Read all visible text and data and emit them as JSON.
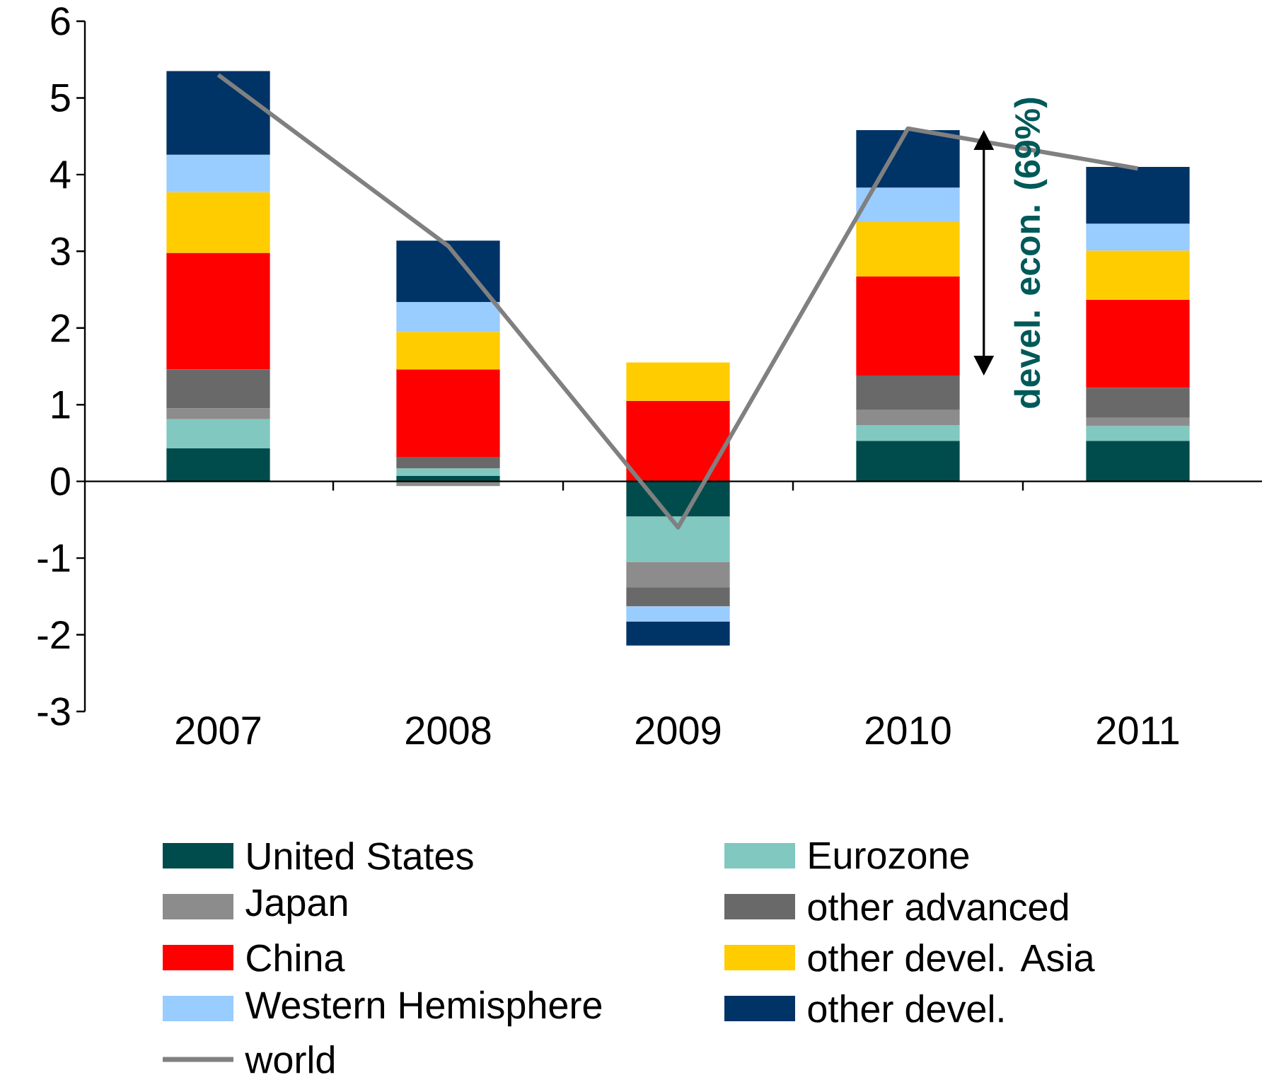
{
  "chart_data": {
    "type": "bar",
    "stacked": true,
    "categories": [
      "2007",
      "2008",
      "2009",
      "2010",
      "2011"
    ],
    "ylim": [
      -3,
      6
    ],
    "yticks": [
      -3,
      -2,
      -1,
      0,
      1,
      2,
      3,
      4,
      5,
      6
    ],
    "legend": "bottom",
    "annotations": [
      "devel. econ. (69%)"
    ],
    "series": [
      {
        "name": "United States",
        "color": "#004c4c",
        "values": [
          0.43,
          0.07,
          -0.46,
          0.53,
          0.53
        ]
      },
      {
        "name": "Eurozone",
        "color": "#80c8c0",
        "values": [
          0.38,
          0.1,
          -0.59,
          0.2,
          0.19
        ]
      },
      {
        "name": "Japan",
        "color": "#8c8c8c",
        "values": [
          0.14,
          -0.06,
          -0.33,
          0.2,
          0.11
        ]
      },
      {
        "name": "other advanced",
        "color": "#696969",
        "values": [
          0.51,
          0.15,
          -0.25,
          0.45,
          0.39
        ]
      },
      {
        "name": "China",
        "color": "#ff0000",
        "values": [
          1.52,
          1.14,
          1.05,
          1.29,
          1.15
        ]
      },
      {
        "name": "other devel. Asia",
        "color": "#ffcc00",
        "values": [
          0.79,
          0.49,
          0.5,
          0.71,
          0.64
        ]
      },
      {
        "name": "Western Hemisphere",
        "color": "#99ccff",
        "values": [
          0.49,
          0.39,
          -0.2,
          0.45,
          0.35
        ]
      },
      {
        "name": "other devel.",
        "color": "#003366",
        "values": [
          1.09,
          0.8,
          -0.31,
          0.75,
          0.74
        ]
      },
      {
        "name": "world",
        "color": "#808080",
        "type": "line",
        "values": [
          5.3,
          3.07,
          -0.6,
          4.6,
          4.08
        ]
      }
    ]
  }
}
